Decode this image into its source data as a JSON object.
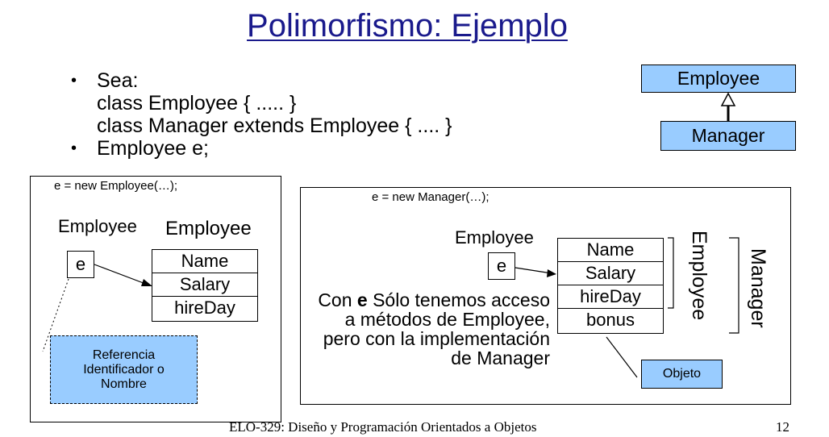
{
  "title": "Polimorfismo: Ejemplo",
  "bullets": {
    "line1": "Sea:",
    "line2": "class Employee { ..... }",
    "line3": "class Manager extends Employee { .... }",
    "line4": "Employee e;",
    "bullet_glyph": "•"
  },
  "uml": {
    "parent": "Employee",
    "child": "Manager"
  },
  "left_panel": {
    "code": "e = new Employee(…);",
    "var_type": "Employee",
    "obj_type": "Employee",
    "var_name": "e",
    "fields": [
      "Name",
      "Salary",
      "hireDay"
    ],
    "ref_note": "Referencia Identificador o Nombre"
  },
  "right_panel": {
    "code": "e = new Manager(…);",
    "var_type": "Employee",
    "var_name": "e",
    "fields": [
      "Name",
      "Salary",
      "hireDay",
      "bonus"
    ],
    "brace_label_inner": "Employee",
    "brace_label_outer": "Manager",
    "note_prefix": "Con ",
    "note_bold": "e",
    "note_rest": " Sólo tenemos acceso a métodos de Employee, pero con la implementación de Manager",
    "object_label": "Objeto"
  },
  "footer": {
    "course": "ELO-329: Diseño y Programación Orientados a Objetos",
    "page": "12"
  },
  "colors": {
    "title": "#1a1a8c",
    "box_fill": "#99ccff"
  }
}
